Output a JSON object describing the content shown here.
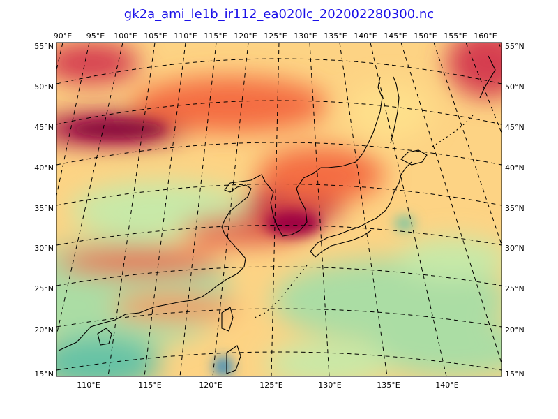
{
  "title": "gk2a_ami_le1b_ir112_ea020lc_202002280300.nc",
  "top_ticks": [
    "90°E",
    "95°E",
    "100°E",
    "105°E",
    "110°E",
    "115°E",
    "120°E",
    "125°E",
    "130°E",
    "135°E",
    "140°E",
    "145°E",
    "150°E",
    "155°E",
    "160°E"
  ],
  "bottom_ticks": [
    "110°E",
    "115°E",
    "120°E",
    "125°E",
    "130°E",
    "135°E",
    "140°E"
  ],
  "left_ticks": [
    "55°N",
    "50°N",
    "45°N",
    "40°N",
    "35°N",
    "30°N",
    "25°N",
    "20°N",
    "15°N"
  ],
  "right_ticks": [
    "55°N",
    "50°N",
    "45°N",
    "40°N",
    "35°N",
    "30°N",
    "25°N",
    "20°N",
    "15°N"
  ],
  "colormap": {
    "warm_dark": "#9e0142",
    "warm": "#f46d43",
    "mid": "#fee08b",
    "cool": "#abdda4",
    "cool_dark": "#3288bd"
  }
}
